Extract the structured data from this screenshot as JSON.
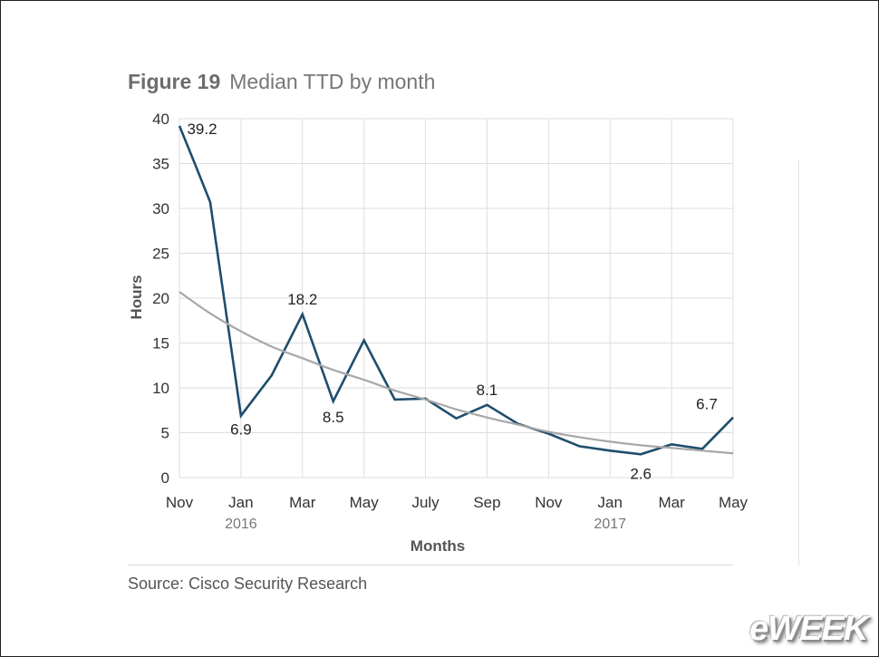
{
  "figure_label": "Figure 19",
  "source_note": "Source: Cisco Security Research",
  "logo_text": "eWEEK",
  "chart_data": {
    "type": "line",
    "title": "Median TTD by month",
    "xlabel": "Months",
    "ylabel": "Hours",
    "ylim": [
      0,
      40
    ],
    "yticks": [
      0,
      5,
      10,
      15,
      20,
      25,
      30,
      35,
      40
    ],
    "grid": true,
    "x_months": [
      "Nov 2015",
      "Dec 2015",
      "Jan 2016",
      "Feb 2016",
      "Mar 2016",
      "Apr 2016",
      "May 2016",
      "Jun 2016",
      "Jul 2016",
      "Aug 2016",
      "Sep 2016",
      "Oct 2016",
      "Nov 2016",
      "Dec 2016",
      "Jan 2017",
      "Feb 2017",
      "Mar 2017",
      "Apr 2017",
      "May 2017"
    ],
    "xtick_labels": [
      {
        "month": "Nov 2015",
        "label": "Nov",
        "year": ""
      },
      {
        "month": "Jan 2016",
        "label": "Jan",
        "year": "2016"
      },
      {
        "month": "Mar 2016",
        "label": "Mar",
        "year": ""
      },
      {
        "month": "May 2016",
        "label": "May",
        "year": ""
      },
      {
        "month": "Jul 2016",
        "label": "July",
        "year": ""
      },
      {
        "month": "Sep 2016",
        "label": "Sep",
        "year": ""
      },
      {
        "month": "Nov 2016",
        "label": "Nov",
        "year": ""
      },
      {
        "month": "Jan 2017",
        "label": "Jan",
        "year": "2017"
      },
      {
        "month": "Mar 2017",
        "label": "Mar",
        "year": ""
      },
      {
        "month": "May 2017",
        "label": "May",
        "year": ""
      }
    ],
    "series": [
      {
        "name": "",
        "color": "#1f4e6d",
        "x": [
          0,
          0.5,
          1,
          2,
          3,
          4,
          5,
          6,
          7,
          8,
          9,
          10,
          11,
          12,
          13,
          14,
          15,
          16,
          17,
          18
        ],
        "values": [
          39.2,
          35.0,
          30.7,
          6.9,
          11.4,
          18.2,
          8.5,
          15.3,
          8.7,
          8.8,
          6.6,
          8.1,
          6.0,
          4.9,
          3.5,
          3.0,
          2.6,
          3.7,
          3.2,
          6.7
        ]
      },
      {
        "name": "",
        "color": "#a8a8a8",
        "type": "trend",
        "x": [
          0,
          1,
          2,
          3,
          4,
          5,
          6,
          7,
          8,
          9,
          10,
          11,
          12,
          13,
          14,
          15,
          16,
          17,
          18
        ],
        "values": [
          20.7,
          18.3,
          16.3,
          14.6,
          13.3,
          12.0,
          10.9,
          9.7,
          8.7,
          7.6,
          6.7,
          5.9,
          5.1,
          4.5,
          4.0,
          3.6,
          3.3,
          3.0,
          2.7
        ]
      }
    ],
    "data_labels": [
      {
        "x": 0,
        "value": 39.2,
        "text": "39.2"
      },
      {
        "x": 2,
        "value": 6.9,
        "text": "6.9"
      },
      {
        "x": 4,
        "value": 18.2,
        "text": "18.2"
      },
      {
        "x": 5,
        "value": 8.5,
        "text": "8.5"
      },
      {
        "x": 10,
        "value": 8.1,
        "text": "8.1"
      },
      {
        "x": 15,
        "value": 2.6,
        "text": "2.6"
      },
      {
        "x": 18,
        "value": 6.7,
        "text": "6.7"
      }
    ]
  }
}
